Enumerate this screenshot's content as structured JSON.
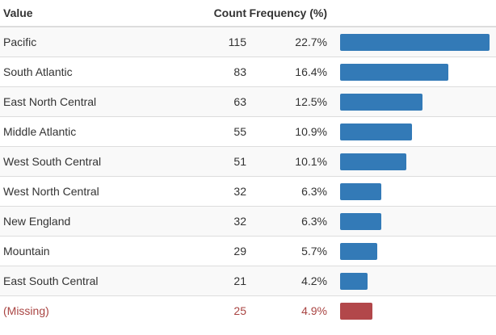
{
  "table": {
    "headers": {
      "value": "Value",
      "count": "Count",
      "frequency": "Frequency (%)"
    }
  },
  "chart_data": {
    "type": "table",
    "title": "",
    "columns": [
      "Value",
      "Count",
      "Frequency (%)"
    ],
    "rows": [
      {
        "value": "Pacific",
        "count": "115",
        "frequency": "22.7%",
        "fraction": 0.227
      },
      {
        "value": "South Atlantic",
        "count": "83",
        "frequency": "16.4%",
        "fraction": 0.164
      },
      {
        "value": "East North Central",
        "count": "63",
        "frequency": "12.5%",
        "fraction": 0.125
      },
      {
        "value": "Middle Atlantic",
        "count": "55",
        "frequency": "10.9%",
        "fraction": 0.109
      },
      {
        "value": "West South Central",
        "count": "51",
        "frequency": "10.1%",
        "fraction": 0.101
      },
      {
        "value": "West North Central",
        "count": "32",
        "frequency": "6.3%",
        "fraction": 0.063
      },
      {
        "value": "New England",
        "count": "32",
        "frequency": "6.3%",
        "fraction": 0.063
      },
      {
        "value": "Mountain",
        "count": "29",
        "frequency": "5.7%",
        "fraction": 0.057
      },
      {
        "value": "East South Central",
        "count": "21",
        "frequency": "4.2%",
        "fraction": 0.042
      },
      {
        "value": "(Missing)",
        "count": "25",
        "frequency": "4.9%",
        "fraction": 0.049,
        "missing": true
      }
    ],
    "colors": {
      "bar": "#337ab7",
      "missing_bar": "#b2474a",
      "missing_text": "#a94442"
    }
  }
}
